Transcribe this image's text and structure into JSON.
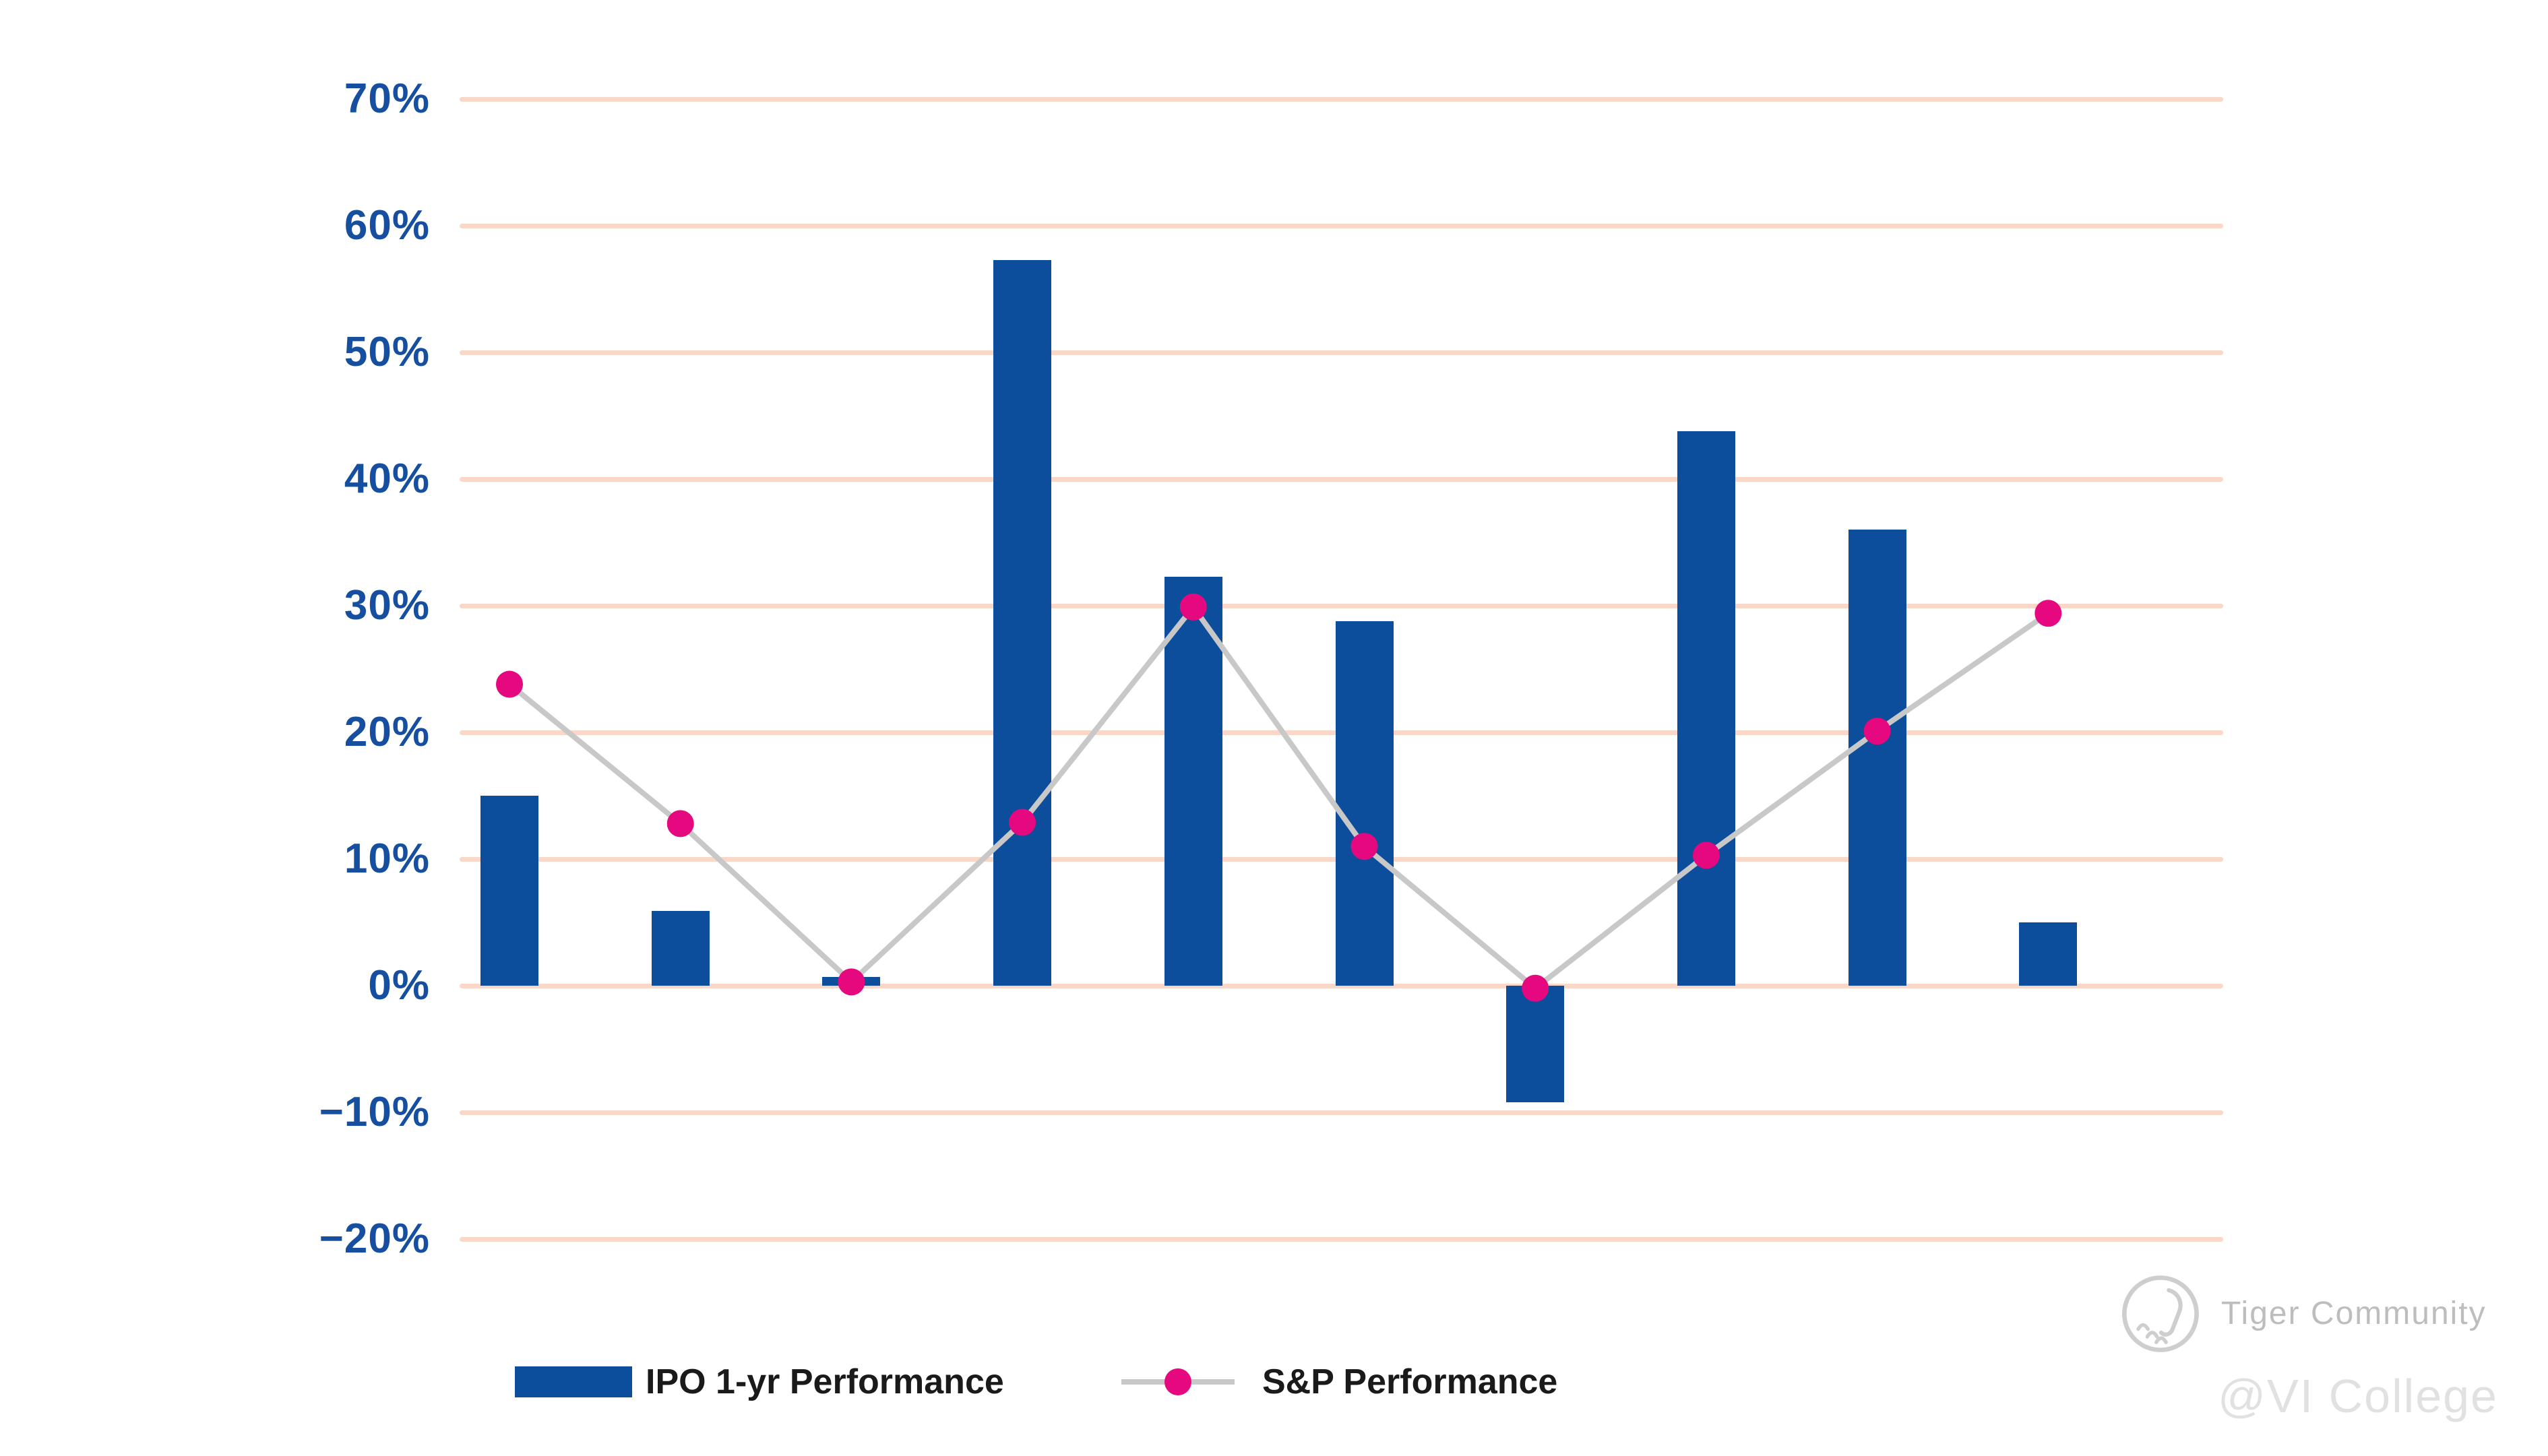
{
  "chart_data": {
    "type": "bar",
    "subtype": "bar-and-line-combo",
    "title": "",
    "xlabel": "",
    "ylabel": "",
    "x_axis": {
      "labels_visible": false,
      "point_count": 10
    },
    "y_axis": {
      "tick_labels": [
        "70%",
        "60%",
        "50%",
        "40%",
        "30%",
        "20%",
        "10%",
        "0%",
        "−10%",
        "−20%"
      ],
      "tick_values": [
        70,
        60,
        50,
        40,
        30,
        20,
        10,
        0,
        -10,
        -20
      ],
      "unit": "%"
    },
    "ylim": [
      -25,
      73
    ],
    "grid": true,
    "legend_position": "bottom-left",
    "series": [
      {
        "name": "IPO 1-yr Performance",
        "type": "bar",
        "color": "#0d4e9c",
        "values": [
          15.0,
          5.9,
          0.7,
          57.3,
          32.3,
          28.8,
          -9.2,
          43.8,
          36.0,
          5.0
        ]
      },
      {
        "name": "S&P Performance",
        "type": "line",
        "color": "#c8c8c8",
        "marker_color": "#e5087e",
        "values": [
          23.8,
          12.8,
          0.3,
          12.9,
          29.9,
          11.0,
          -0.2,
          10.3,
          20.1,
          29.4
        ]
      }
    ]
  },
  "colors": {
    "bar_blue": "#0d4e9c",
    "line_gray": "#c8c8c8",
    "dot_pink": "#e5087e",
    "gridline_peach": "#f9d8c9",
    "tick_label_blue": "#164f9f",
    "legend_text": "#1a1a1a"
  },
  "legend": {
    "items": [
      {
        "label": "IPO 1-yr Performance",
        "swatch": "bar"
      },
      {
        "label": "S&P Performance",
        "swatch": "line-dot"
      }
    ]
  },
  "watermark": {
    "brand": "Tiger Community",
    "handle": "@VI College",
    "logo": "tiger-paw-circle-icon"
  }
}
